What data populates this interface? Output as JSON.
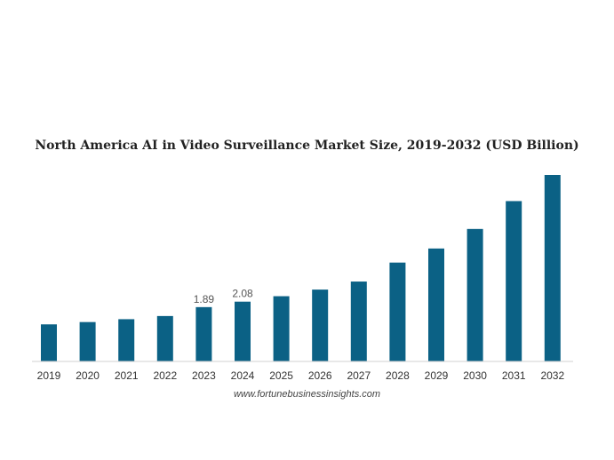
{
  "chart_data": {
    "type": "bar",
    "title": "North America AI in Video Surveillance Market Size, 2019-2032 (USD Billion)",
    "categories": [
      "2019",
      "2020",
      "2021",
      "2022",
      "2023",
      "2024",
      "2025",
      "2026",
      "2027",
      "2028",
      "2029",
      "2030",
      "2031",
      "2032"
    ],
    "values": [
      1.29,
      1.37,
      1.47,
      1.58,
      1.89,
      2.08,
      2.27,
      2.5,
      2.78,
      3.44,
      3.93,
      4.61,
      5.58,
      6.49
    ],
    "data_labels": {
      "2023": "1.89",
      "2024": "2.08"
    },
    "ylim": [
      0,
      6.8
    ],
    "grid": false,
    "bar_color": "#0b6185"
  },
  "source": "www.fortunebusinessinsights.com"
}
